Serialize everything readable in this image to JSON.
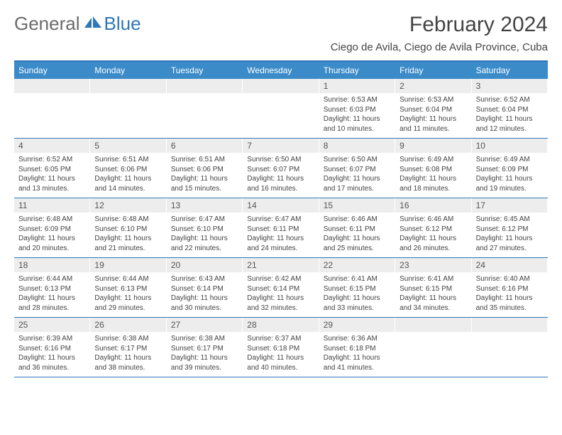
{
  "logo": {
    "general": "General",
    "blue": "Blue"
  },
  "title": "February 2024",
  "location": "Ciego de Avila, Ciego de Avila Province, Cuba",
  "weekdays": [
    "Sunday",
    "Monday",
    "Tuesday",
    "Wednesday",
    "Thursday",
    "Friday",
    "Saturday"
  ],
  "colors": {
    "header_bg": "#3b8bc9",
    "border": "#2e77b8",
    "daynum_bg": "#ededed",
    "text": "#444444"
  },
  "weeks": [
    [
      {
        "n": "",
        "sunrise": "",
        "sunset": "",
        "daylight": ""
      },
      {
        "n": "",
        "sunrise": "",
        "sunset": "",
        "daylight": ""
      },
      {
        "n": "",
        "sunrise": "",
        "sunset": "",
        "daylight": ""
      },
      {
        "n": "",
        "sunrise": "",
        "sunset": "",
        "daylight": ""
      },
      {
        "n": "1",
        "sunrise": "Sunrise: 6:53 AM",
        "sunset": "Sunset: 6:03 PM",
        "daylight": "Daylight: 11 hours and 10 minutes."
      },
      {
        "n": "2",
        "sunrise": "Sunrise: 6:53 AM",
        "sunset": "Sunset: 6:04 PM",
        "daylight": "Daylight: 11 hours and 11 minutes."
      },
      {
        "n": "3",
        "sunrise": "Sunrise: 6:52 AM",
        "sunset": "Sunset: 6:04 PM",
        "daylight": "Daylight: 11 hours and 12 minutes."
      }
    ],
    [
      {
        "n": "4",
        "sunrise": "Sunrise: 6:52 AM",
        "sunset": "Sunset: 6:05 PM",
        "daylight": "Daylight: 11 hours and 13 minutes."
      },
      {
        "n": "5",
        "sunrise": "Sunrise: 6:51 AM",
        "sunset": "Sunset: 6:06 PM",
        "daylight": "Daylight: 11 hours and 14 minutes."
      },
      {
        "n": "6",
        "sunrise": "Sunrise: 6:51 AM",
        "sunset": "Sunset: 6:06 PM",
        "daylight": "Daylight: 11 hours and 15 minutes."
      },
      {
        "n": "7",
        "sunrise": "Sunrise: 6:50 AM",
        "sunset": "Sunset: 6:07 PM",
        "daylight": "Daylight: 11 hours and 16 minutes."
      },
      {
        "n": "8",
        "sunrise": "Sunrise: 6:50 AM",
        "sunset": "Sunset: 6:07 PM",
        "daylight": "Daylight: 11 hours and 17 minutes."
      },
      {
        "n": "9",
        "sunrise": "Sunrise: 6:49 AM",
        "sunset": "Sunset: 6:08 PM",
        "daylight": "Daylight: 11 hours and 18 minutes."
      },
      {
        "n": "10",
        "sunrise": "Sunrise: 6:49 AM",
        "sunset": "Sunset: 6:09 PM",
        "daylight": "Daylight: 11 hours and 19 minutes."
      }
    ],
    [
      {
        "n": "11",
        "sunrise": "Sunrise: 6:48 AM",
        "sunset": "Sunset: 6:09 PM",
        "daylight": "Daylight: 11 hours and 20 minutes."
      },
      {
        "n": "12",
        "sunrise": "Sunrise: 6:48 AM",
        "sunset": "Sunset: 6:10 PM",
        "daylight": "Daylight: 11 hours and 21 minutes."
      },
      {
        "n": "13",
        "sunrise": "Sunrise: 6:47 AM",
        "sunset": "Sunset: 6:10 PM",
        "daylight": "Daylight: 11 hours and 22 minutes."
      },
      {
        "n": "14",
        "sunrise": "Sunrise: 6:47 AM",
        "sunset": "Sunset: 6:11 PM",
        "daylight": "Daylight: 11 hours and 24 minutes."
      },
      {
        "n": "15",
        "sunrise": "Sunrise: 6:46 AM",
        "sunset": "Sunset: 6:11 PM",
        "daylight": "Daylight: 11 hours and 25 minutes."
      },
      {
        "n": "16",
        "sunrise": "Sunrise: 6:46 AM",
        "sunset": "Sunset: 6:12 PM",
        "daylight": "Daylight: 11 hours and 26 minutes."
      },
      {
        "n": "17",
        "sunrise": "Sunrise: 6:45 AM",
        "sunset": "Sunset: 6:12 PM",
        "daylight": "Daylight: 11 hours and 27 minutes."
      }
    ],
    [
      {
        "n": "18",
        "sunrise": "Sunrise: 6:44 AM",
        "sunset": "Sunset: 6:13 PM",
        "daylight": "Daylight: 11 hours and 28 minutes."
      },
      {
        "n": "19",
        "sunrise": "Sunrise: 6:44 AM",
        "sunset": "Sunset: 6:13 PM",
        "daylight": "Daylight: 11 hours and 29 minutes."
      },
      {
        "n": "20",
        "sunrise": "Sunrise: 6:43 AM",
        "sunset": "Sunset: 6:14 PM",
        "daylight": "Daylight: 11 hours and 30 minutes."
      },
      {
        "n": "21",
        "sunrise": "Sunrise: 6:42 AM",
        "sunset": "Sunset: 6:14 PM",
        "daylight": "Daylight: 11 hours and 32 minutes."
      },
      {
        "n": "22",
        "sunrise": "Sunrise: 6:41 AM",
        "sunset": "Sunset: 6:15 PM",
        "daylight": "Daylight: 11 hours and 33 minutes."
      },
      {
        "n": "23",
        "sunrise": "Sunrise: 6:41 AM",
        "sunset": "Sunset: 6:15 PM",
        "daylight": "Daylight: 11 hours and 34 minutes."
      },
      {
        "n": "24",
        "sunrise": "Sunrise: 6:40 AM",
        "sunset": "Sunset: 6:16 PM",
        "daylight": "Daylight: 11 hours and 35 minutes."
      }
    ],
    [
      {
        "n": "25",
        "sunrise": "Sunrise: 6:39 AM",
        "sunset": "Sunset: 6:16 PM",
        "daylight": "Daylight: 11 hours and 36 minutes."
      },
      {
        "n": "26",
        "sunrise": "Sunrise: 6:38 AM",
        "sunset": "Sunset: 6:17 PM",
        "daylight": "Daylight: 11 hours and 38 minutes."
      },
      {
        "n": "27",
        "sunrise": "Sunrise: 6:38 AM",
        "sunset": "Sunset: 6:17 PM",
        "daylight": "Daylight: 11 hours and 39 minutes."
      },
      {
        "n": "28",
        "sunrise": "Sunrise: 6:37 AM",
        "sunset": "Sunset: 6:18 PM",
        "daylight": "Daylight: 11 hours and 40 minutes."
      },
      {
        "n": "29",
        "sunrise": "Sunrise: 6:36 AM",
        "sunset": "Sunset: 6:18 PM",
        "daylight": "Daylight: 11 hours and 41 minutes."
      },
      {
        "n": "",
        "sunrise": "",
        "sunset": "",
        "daylight": ""
      },
      {
        "n": "",
        "sunrise": "",
        "sunset": "",
        "daylight": ""
      }
    ]
  ]
}
